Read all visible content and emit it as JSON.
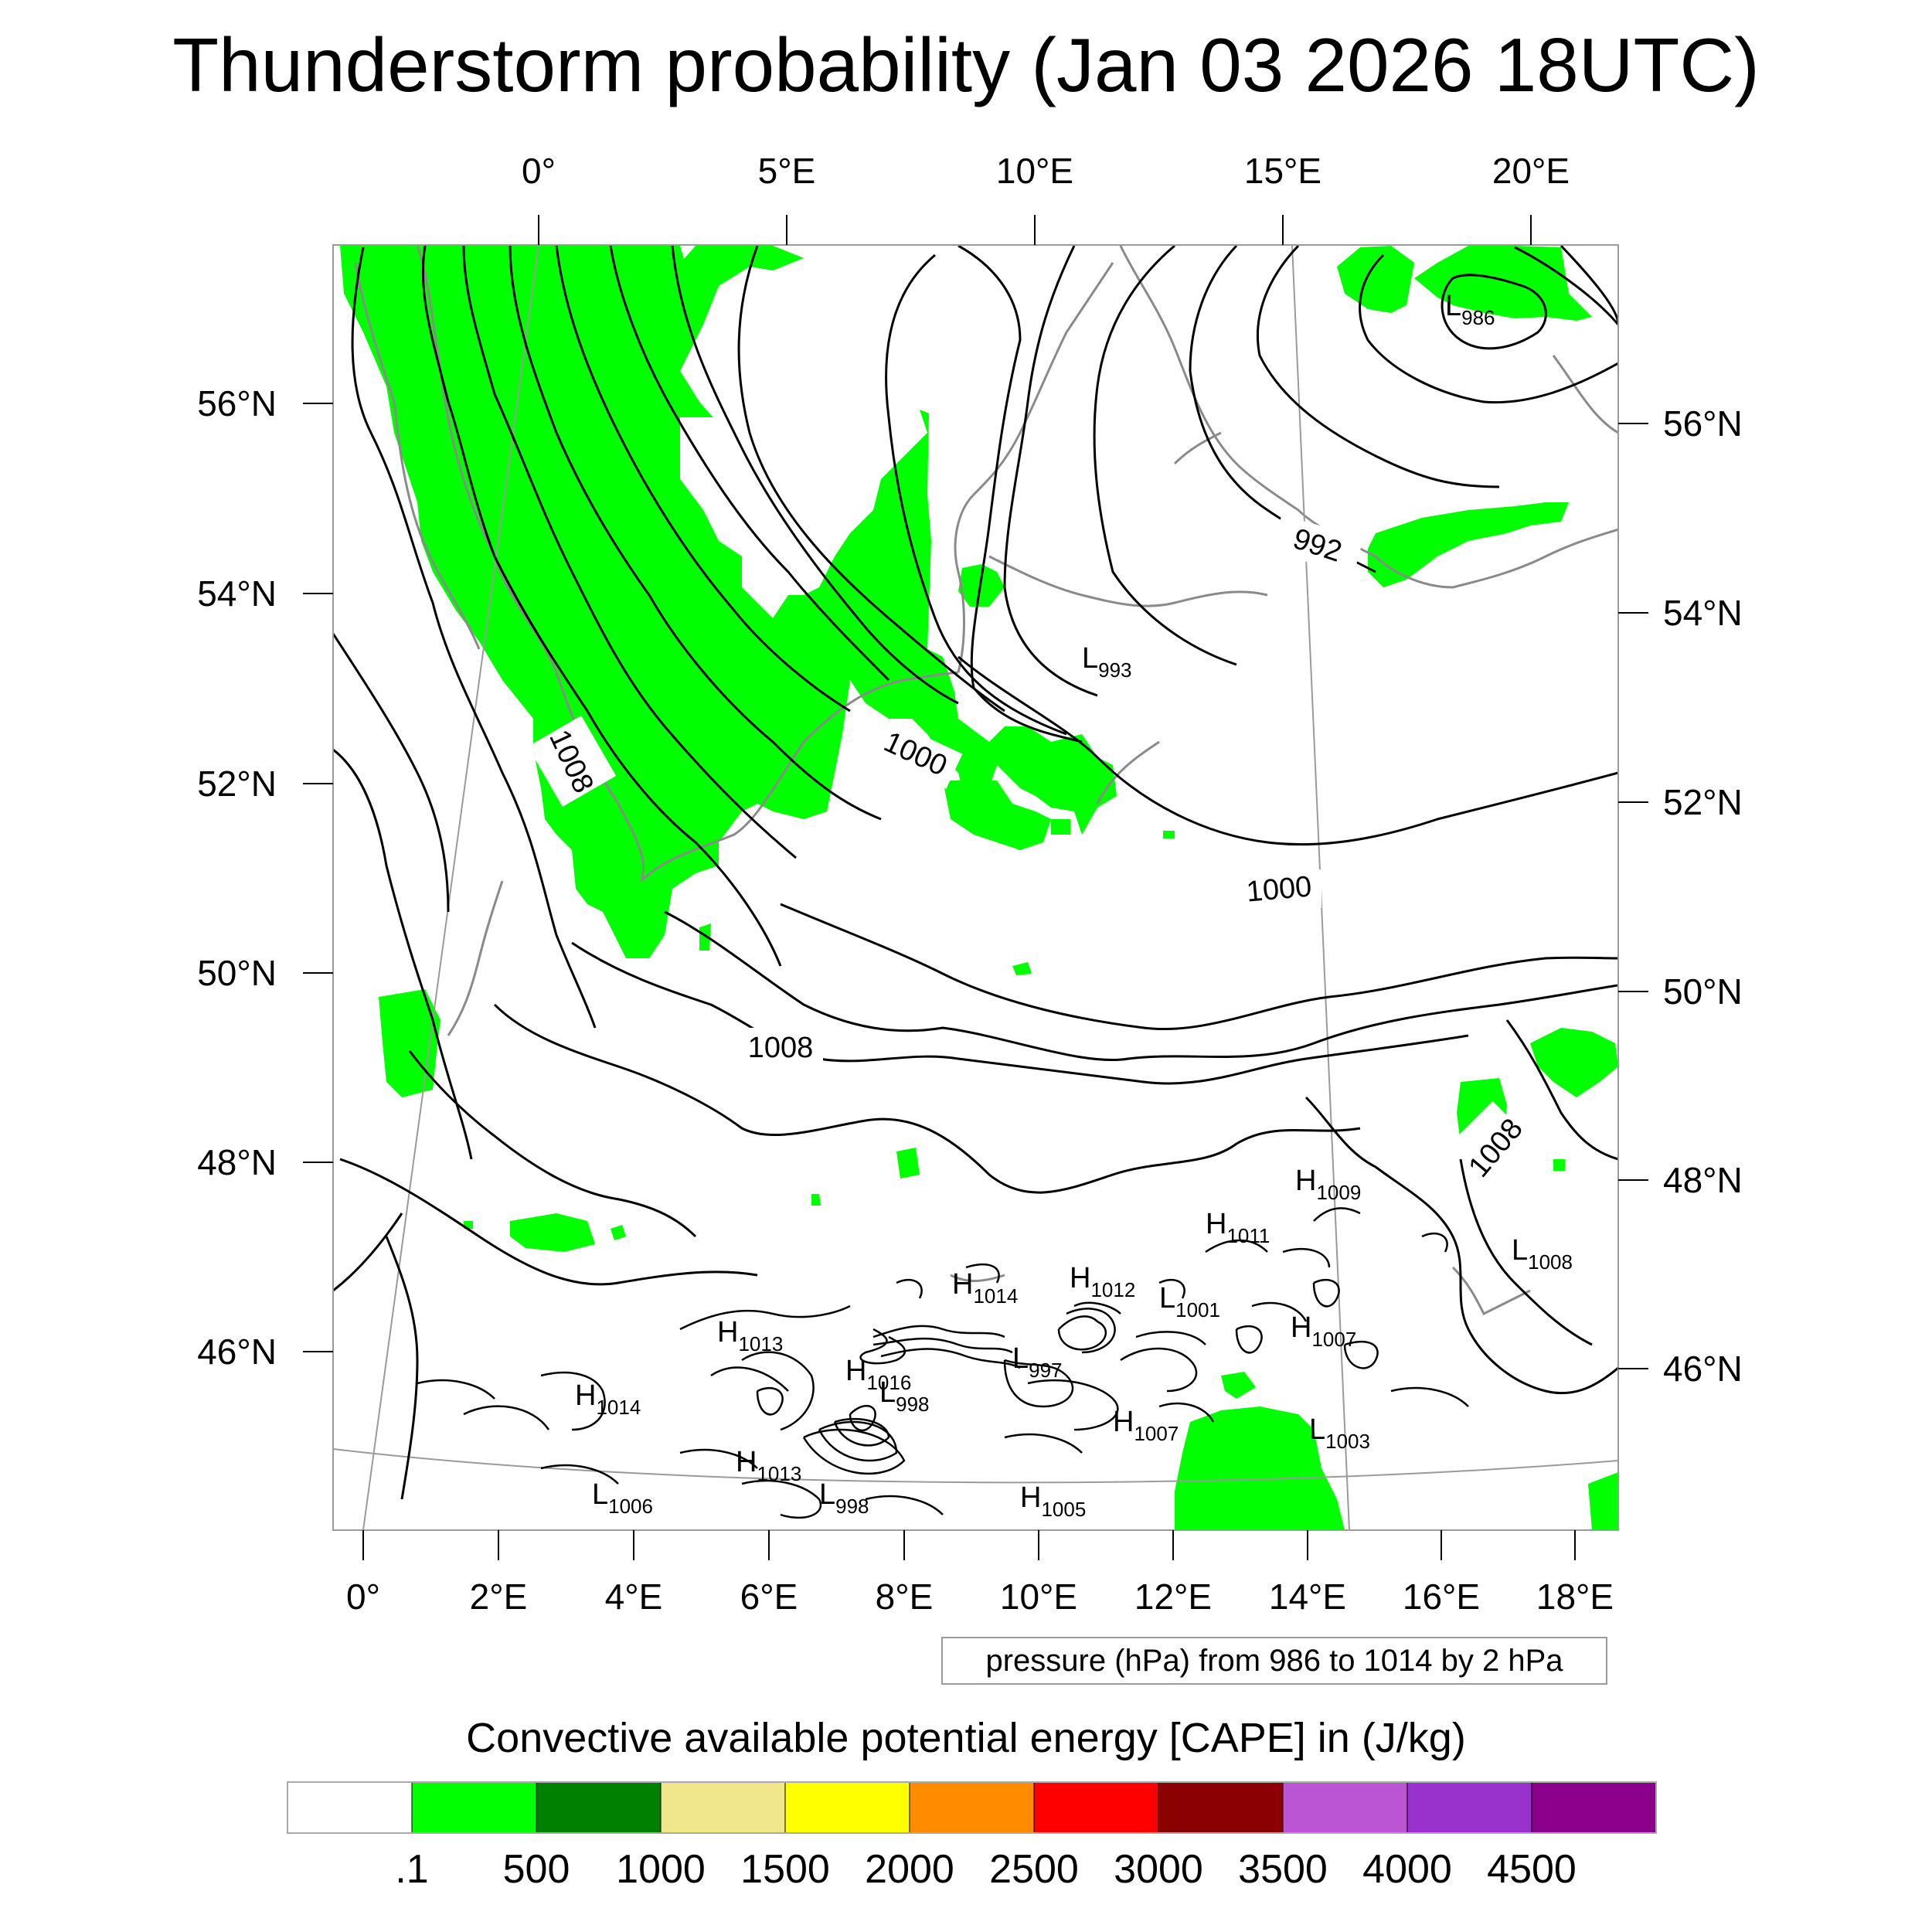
{
  "title": "Thunderstorm probability (Jan 03 2026 18UTC)",
  "top_lon_labels": [
    "0°",
    "5°E",
    "10°E",
    "15°E",
    "20°E"
  ],
  "bottom_lon_labels": [
    "0°",
    "2°E",
    "4°E",
    "6°E",
    "8°E",
    "10°E",
    "12°E",
    "14°E",
    "16°E",
    "18°E"
  ],
  "left_lat_labels": [
    "56°N",
    "54°N",
    "52°N",
    "50°N",
    "48°N",
    "46°N"
  ],
  "right_lat_labels": [
    "56°N",
    "54°N",
    "52°N",
    "50°N",
    "48°N",
    "46°N"
  ],
  "contour_info": "pressure (hPa) from 986 to 1014 by 2 hPa",
  "contour_labels": [
    "1008",
    "1000",
    "992",
    "1000",
    "1008",
    "1008"
  ],
  "pressure_centers": [
    {
      "type": "L",
      "value": "986"
    },
    {
      "type": "L",
      "value": "993"
    },
    {
      "type": "H",
      "value": "1009"
    },
    {
      "type": "H",
      "value": "1011"
    },
    {
      "type": "L",
      "value": "1008"
    },
    {
      "type": "H",
      "value": "1014"
    },
    {
      "type": "H",
      "value": "1012"
    },
    {
      "type": "L",
      "value": "1001"
    },
    {
      "type": "H",
      "value": "1007"
    },
    {
      "type": "H",
      "value": "1013"
    },
    {
      "type": "H",
      "value": "1016"
    },
    {
      "type": "L",
      "value": "997"
    },
    {
      "type": "L",
      "value": "998"
    },
    {
      "type": "H",
      "value": "1014"
    },
    {
      "type": "H",
      "value": "1007"
    },
    {
      "type": "L",
      "value": "1003"
    },
    {
      "type": "H",
      "value": "1013"
    },
    {
      "type": "L",
      "value": "1006"
    },
    {
      "type": "L",
      "value": "998"
    },
    {
      "type": "H",
      "value": "1005"
    }
  ],
  "legend": {
    "title": "Convective available potential energy [CAPE] in (J/kg)",
    "colors": [
      "#ffffff",
      "#00ff00",
      "#008000",
      "#f0e68c",
      "#ffff00",
      "#ff8c00",
      "#ff0000",
      "#8b0000",
      "#ba55d3",
      "#9932cc",
      "#8b008b"
    ],
    "labels": [
      ".1",
      "500",
      "1000",
      "1500",
      "2000",
      "2500",
      "3000",
      "3500",
      "4000",
      "4500"
    ]
  },
  "cape_fill_color": "#00ff00"
}
